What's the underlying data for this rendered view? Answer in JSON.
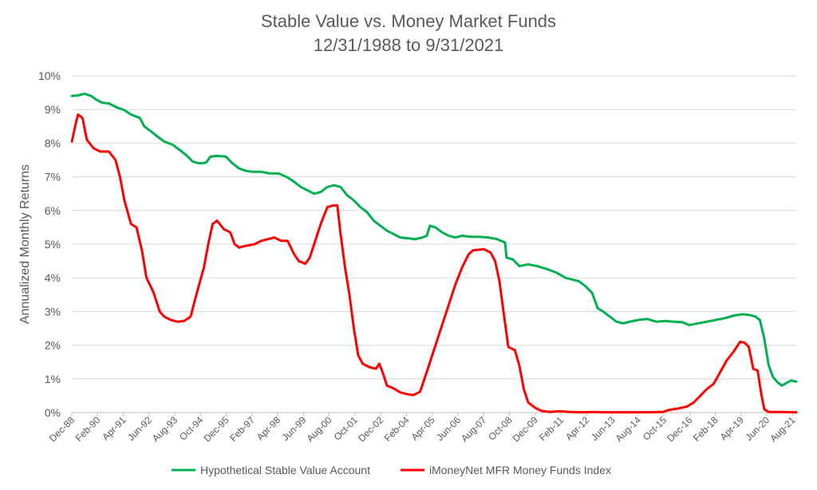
{
  "chart_data": {
    "type": "line",
    "title": "Stable Value vs. Money Market Funds",
    "subtitle": "12/31/1988 to 9/31/2021",
    "xlabel": "",
    "ylabel": "Annualized Monthly Returns",
    "ylim": [
      0,
      10
    ],
    "y_ticks": [
      "0%",
      "1%",
      "2%",
      "3%",
      "4%",
      "5%",
      "6%",
      "7%",
      "8%",
      "9%",
      "10%"
    ],
    "x_range": [
      1988.917,
      2021.75
    ],
    "x_ticks": [
      {
        "label": "Dec-88",
        "x": 1988.917
      },
      {
        "label": "Feb-90",
        "x": 1990.083
      },
      {
        "label": "Apr-91",
        "x": 1991.25
      },
      {
        "label": "Jun-92",
        "x": 1992.417
      },
      {
        "label": "Aug-93",
        "x": 1993.583
      },
      {
        "label": "Oct-94",
        "x": 1994.75
      },
      {
        "label": "Dec-95",
        "x": 1995.917
      },
      {
        "label": "Feb-97",
        "x": 1997.083
      },
      {
        "label": "Apr-98",
        "x": 1998.25
      },
      {
        "label": "Jun-99",
        "x": 1999.417
      },
      {
        "label": "Aug-00",
        "x": 2000.583
      },
      {
        "label": "Oct-01",
        "x": 2001.75
      },
      {
        "label": "Dec-02",
        "x": 2002.917
      },
      {
        "label": "Feb-04",
        "x": 2004.083
      },
      {
        "label": "Apr-05",
        "x": 2005.25
      },
      {
        "label": "Jun-06",
        "x": 2006.417
      },
      {
        "label": "Aug-07",
        "x": 2007.583
      },
      {
        "label": "Oct-08",
        "x": 2008.75
      },
      {
        "label": "Dec-09",
        "x": 2009.917
      },
      {
        "label": "Feb-11",
        "x": 2011.083
      },
      {
        "label": "Apr-12",
        "x": 2012.25
      },
      {
        "label": "Jun-13",
        "x": 2013.417
      },
      {
        "label": "Aug-14",
        "x": 2014.583
      },
      {
        "label": "Oct-15",
        "x": 2015.75
      },
      {
        "label": "Dec-16",
        "x": 2016.917
      },
      {
        "label": "Feb-18",
        "x": 2018.083
      },
      {
        "label": "Apr-19",
        "x": 2019.25
      },
      {
        "label": "Jun-20",
        "x": 2020.417
      },
      {
        "label": "Aug-21",
        "x": 2021.583
      }
    ],
    "grid": true,
    "legend_position": "bottom",
    "series": [
      {
        "name": "Hypothetical Stable Value Account",
        "color": "#00b050",
        "points": [
          [
            1988.92,
            9.4
          ],
          [
            1989.2,
            9.42
          ],
          [
            1989.5,
            9.47
          ],
          [
            1989.8,
            9.4
          ],
          [
            1990.0,
            9.3
          ],
          [
            1990.3,
            9.2
          ],
          [
            1990.6,
            9.18
          ],
          [
            1991.0,
            9.05
          ],
          [
            1991.3,
            8.98
          ],
          [
            1991.6,
            8.85
          ],
          [
            1992.0,
            8.75
          ],
          [
            1992.2,
            8.5
          ],
          [
            1992.5,
            8.35
          ],
          [
            1992.8,
            8.2
          ],
          [
            1993.1,
            8.05
          ],
          [
            1993.5,
            7.95
          ],
          [
            1993.8,
            7.8
          ],
          [
            1994.1,
            7.65
          ],
          [
            1994.4,
            7.45
          ],
          [
            1994.7,
            7.4
          ],
          [
            1995.0,
            7.42
          ],
          [
            1995.2,
            7.6
          ],
          [
            1995.5,
            7.62
          ],
          [
            1995.9,
            7.6
          ],
          [
            1996.2,
            7.4
          ],
          [
            1996.5,
            7.25
          ],
          [
            1996.8,
            7.18
          ],
          [
            1997.1,
            7.15
          ],
          [
            1997.5,
            7.15
          ],
          [
            1997.9,
            7.1
          ],
          [
            1998.3,
            7.1
          ],
          [
            1998.7,
            6.98
          ],
          [
            1999.0,
            6.85
          ],
          [
            1999.3,
            6.7
          ],
          [
            1999.6,
            6.6
          ],
          [
            1999.9,
            6.5
          ],
          [
            2000.2,
            6.55
          ],
          [
            2000.5,
            6.7
          ],
          [
            2000.8,
            6.75
          ],
          [
            2001.1,
            6.7
          ],
          [
            2001.4,
            6.45
          ],
          [
            2001.7,
            6.3
          ],
          [
            2002.0,
            6.1
          ],
          [
            2002.3,
            5.95
          ],
          [
            2002.6,
            5.7
          ],
          [
            2002.9,
            5.55
          ],
          [
            2003.2,
            5.4
          ],
          [
            2003.5,
            5.3
          ],
          [
            2003.8,
            5.2
          ],
          [
            2004.1,
            5.18
          ],
          [
            2004.5,
            5.15
          ],
          [
            2004.8,
            5.2
          ],
          [
            2005.0,
            5.25
          ],
          [
            2005.15,
            5.55
          ],
          [
            2005.4,
            5.5
          ],
          [
            2005.7,
            5.35
          ],
          [
            2006.0,
            5.25
          ],
          [
            2006.3,
            5.2
          ],
          [
            2006.6,
            5.25
          ],
          [
            2007.0,
            5.22
          ],
          [
            2007.4,
            5.22
          ],
          [
            2007.8,
            5.2
          ],
          [
            2008.2,
            5.15
          ],
          [
            2008.55,
            5.05
          ],
          [
            2008.62,
            4.6
          ],
          [
            2008.9,
            4.55
          ],
          [
            2009.2,
            4.35
          ],
          [
            2009.6,
            4.4
          ],
          [
            2010.0,
            4.35
          ],
          [
            2010.5,
            4.25
          ],
          [
            2010.9,
            4.15
          ],
          [
            2011.3,
            4.0
          ],
          [
            2011.6,
            3.95
          ],
          [
            2011.9,
            3.9
          ],
          [
            2012.2,
            3.75
          ],
          [
            2012.5,
            3.55
          ],
          [
            2012.75,
            3.1
          ],
          [
            2013.0,
            3.0
          ],
          [
            2013.3,
            2.85
          ],
          [
            2013.6,
            2.7
          ],
          [
            2013.9,
            2.65
          ],
          [
            2014.2,
            2.7
          ],
          [
            2014.6,
            2.75
          ],
          [
            2015.0,
            2.78
          ],
          [
            2015.4,
            2.7
          ],
          [
            2015.8,
            2.72
          ],
          [
            2016.2,
            2.7
          ],
          [
            2016.6,
            2.68
          ],
          [
            2016.9,
            2.6
          ],
          [
            2017.3,
            2.65
          ],
          [
            2017.7,
            2.7
          ],
          [
            2018.1,
            2.75
          ],
          [
            2018.5,
            2.8
          ],
          [
            2018.9,
            2.88
          ],
          [
            2019.3,
            2.92
          ],
          [
            2019.6,
            2.9
          ],
          [
            2019.9,
            2.85
          ],
          [
            2020.1,
            2.75
          ],
          [
            2020.3,
            2.2
          ],
          [
            2020.5,
            1.4
          ],
          [
            2020.7,
            1.05
          ],
          [
            2020.9,
            0.9
          ],
          [
            2021.1,
            0.8
          ],
          [
            2021.3,
            0.88
          ],
          [
            2021.5,
            0.95
          ],
          [
            2021.75,
            0.92
          ]
        ]
      },
      {
        "name": "iMoneyNet MFR Money Funds Index",
        "color": "#ff0000",
        "points": [
          [
            1988.92,
            8.05
          ],
          [
            1989.1,
            8.6
          ],
          [
            1989.2,
            8.85
          ],
          [
            1989.4,
            8.75
          ],
          [
            1989.6,
            8.1
          ],
          [
            1989.9,
            7.85
          ],
          [
            1990.2,
            7.75
          ],
          [
            1990.6,
            7.75
          ],
          [
            1990.9,
            7.5
          ],
          [
            1991.1,
            7.0
          ],
          [
            1991.3,
            6.3
          ],
          [
            1991.6,
            5.6
          ],
          [
            1991.85,
            5.5
          ],
          [
            1992.1,
            4.8
          ],
          [
            1992.3,
            4.0
          ],
          [
            1992.6,
            3.6
          ],
          [
            1992.9,
            3.0
          ],
          [
            1993.1,
            2.85
          ],
          [
            1993.4,
            2.75
          ],
          [
            1993.7,
            2.7
          ],
          [
            1994.0,
            2.72
          ],
          [
            1994.3,
            2.85
          ],
          [
            1994.6,
            3.6
          ],
          [
            1994.9,
            4.3
          ],
          [
            1995.1,
            5.0
          ],
          [
            1995.3,
            5.6
          ],
          [
            1995.5,
            5.7
          ],
          [
            1995.8,
            5.45
          ],
          [
            1996.1,
            5.35
          ],
          [
            1996.3,
            5.0
          ],
          [
            1996.5,
            4.9
          ],
          [
            1996.8,
            4.95
          ],
          [
            1997.2,
            5.0
          ],
          [
            1997.5,
            5.1
          ],
          [
            1997.8,
            5.15
          ],
          [
            1998.1,
            5.2
          ],
          [
            1998.4,
            5.1
          ],
          [
            1998.7,
            5.1
          ],
          [
            1999.0,
            4.7
          ],
          [
            1999.2,
            4.5
          ],
          [
            1999.5,
            4.42
          ],
          [
            1999.7,
            4.6
          ],
          [
            2000.0,
            5.2
          ],
          [
            2000.2,
            5.6
          ],
          [
            2000.5,
            6.1
          ],
          [
            2000.75,
            6.15
          ],
          [
            2000.95,
            6.15
          ],
          [
            2001.1,
            5.3
          ],
          [
            2001.3,
            4.3
          ],
          [
            2001.5,
            3.5
          ],
          [
            2001.7,
            2.5
          ],
          [
            2001.9,
            1.7
          ],
          [
            2002.1,
            1.45
          ],
          [
            2002.4,
            1.35
          ],
          [
            2002.7,
            1.3
          ],
          [
            2002.85,
            1.45
          ],
          [
            2003.0,
            1.2
          ],
          [
            2003.2,
            0.8
          ],
          [
            2003.5,
            0.72
          ],
          [
            2003.8,
            0.6
          ],
          [
            2004.1,
            0.55
          ],
          [
            2004.4,
            0.52
          ],
          [
            2004.7,
            0.62
          ],
          [
            2004.9,
            1.0
          ],
          [
            2005.2,
            1.6
          ],
          [
            2005.5,
            2.2
          ],
          [
            2005.8,
            2.8
          ],
          [
            2006.0,
            3.2
          ],
          [
            2006.3,
            3.8
          ],
          [
            2006.6,
            4.3
          ],
          [
            2006.9,
            4.7
          ],
          [
            2007.1,
            4.82
          ],
          [
            2007.6,
            4.85
          ],
          [
            2007.9,
            4.75
          ],
          [
            2008.1,
            4.5
          ],
          [
            2008.3,
            3.9
          ],
          [
            2008.5,
            2.9
          ],
          [
            2008.7,
            1.95
          ],
          [
            2009.0,
            1.85
          ],
          [
            2009.2,
            1.4
          ],
          [
            2009.4,
            0.7
          ],
          [
            2009.6,
            0.3
          ],
          [
            2009.9,
            0.15
          ],
          [
            2010.2,
            0.05
          ],
          [
            2010.6,
            0.02
          ],
          [
            2011.0,
            0.04
          ],
          [
            2011.5,
            0.02
          ],
          [
            2012.0,
            0.01
          ],
          [
            2012.5,
            0.02
          ],
          [
            2013.0,
            0.01
          ],
          [
            2014.0,
            0.01
          ],
          [
            2015.0,
            0.01
          ],
          [
            2015.7,
            0.02
          ],
          [
            2016.0,
            0.08
          ],
          [
            2016.4,
            0.12
          ],
          [
            2016.8,
            0.18
          ],
          [
            2017.1,
            0.3
          ],
          [
            2017.4,
            0.5
          ],
          [
            2017.7,
            0.7
          ],
          [
            2018.0,
            0.85
          ],
          [
            2018.3,
            1.2
          ],
          [
            2018.6,
            1.55
          ],
          [
            2018.9,
            1.8
          ],
          [
            2019.2,
            2.1
          ],
          [
            2019.4,
            2.08
          ],
          [
            2019.6,
            1.95
          ],
          [
            2019.8,
            1.3
          ],
          [
            2020.0,
            1.25
          ],
          [
            2020.15,
            0.6
          ],
          [
            2020.3,
            0.1
          ],
          [
            2020.5,
            0.02
          ],
          [
            2021.0,
            0.02
          ],
          [
            2021.75,
            0.01
          ]
        ]
      }
    ]
  }
}
